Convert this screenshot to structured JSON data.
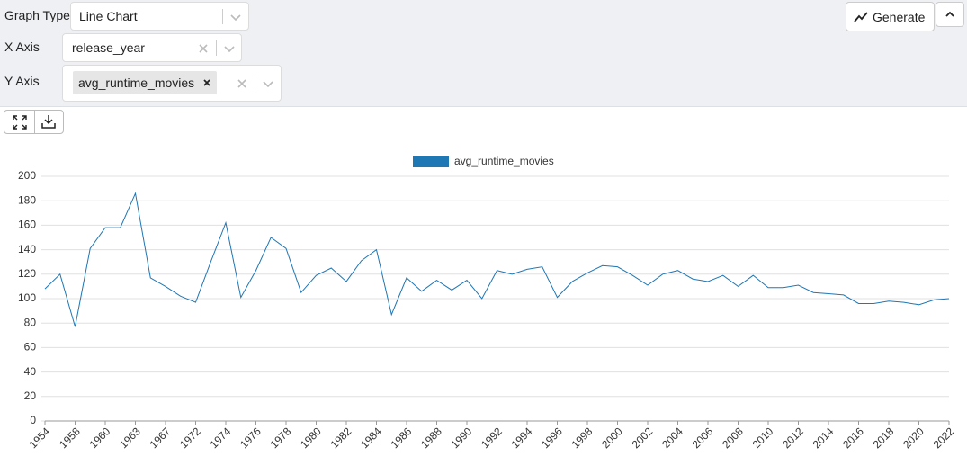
{
  "controls": {
    "graph_type": {
      "label": "Graph Type",
      "value": "Line Chart"
    },
    "x_axis": {
      "label": "X Axis",
      "value": "release_year"
    },
    "y_axis": {
      "label": "Y Axis",
      "values": [
        "avg_runtime_movies"
      ]
    },
    "generate": "Generate"
  },
  "chart_data": {
    "type": "line",
    "categories": [
      "1954",
      null,
      "1958",
      null,
      "1960",
      null,
      "1963",
      null,
      "1967",
      null,
      "1972",
      null,
      "1974",
      null,
      "1976",
      null,
      "1978",
      null,
      "1980",
      null,
      "1982",
      null,
      "1984",
      null,
      "1986",
      null,
      "1988",
      null,
      "1990",
      null,
      "1992",
      null,
      "1994",
      null,
      "1996",
      null,
      "1998",
      null,
      "2000",
      null,
      "2002",
      null,
      "2004",
      null,
      "2006",
      null,
      "2008",
      null,
      "2010",
      null,
      "2012",
      null,
      "2014",
      null,
      "2016",
      null,
      "2018",
      null,
      "2020",
      null,
      "2022"
    ],
    "series": [
      {
        "name": "avg_runtime_movies",
        "color": "#1f77b4",
        "values": [
          108,
          120,
          77,
          141,
          158,
          158,
          186,
          117,
          110,
          102,
          97,
          130,
          162,
          101,
          123,
          150,
          141,
          105,
          119,
          125,
          114,
          131,
          140,
          87,
          117,
          106,
          115,
          107,
          115,
          100,
          123,
          120,
          124,
          126,
          101,
          114,
          121,
          127,
          126,
          119,
          111,
          120,
          123,
          116,
          114,
          119,
          110,
          119,
          109,
          109,
          111,
          105,
          104,
          103,
          96,
          96,
          98,
          97,
          95,
          99,
          100
        ]
      }
    ],
    "ylim": [
      0,
      200
    ],
    "yticks": [
      0,
      20,
      40,
      60,
      80,
      100,
      120,
      140,
      160,
      180,
      200
    ],
    "grid": true,
    "legend": "top"
  }
}
